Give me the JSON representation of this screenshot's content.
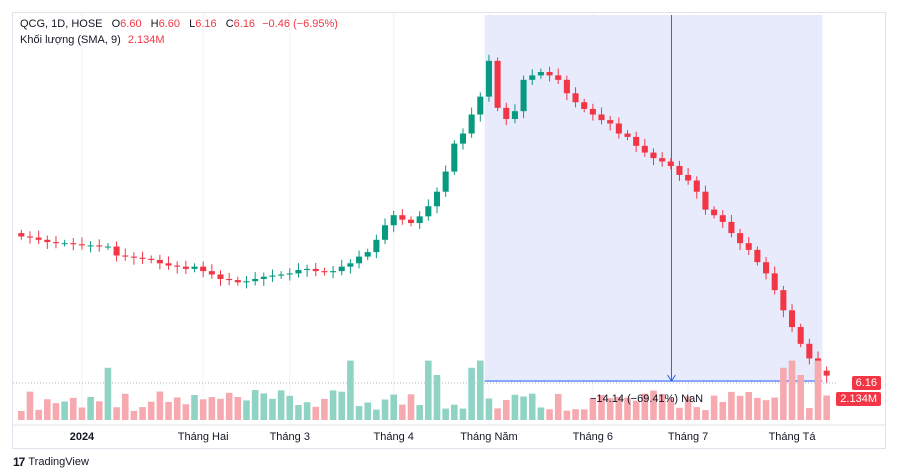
{
  "legend": {
    "symbol": "QCG, 1D, HOSE",
    "open_label": "O",
    "open": "6.60",
    "high_label": "H",
    "high": "6.60",
    "low_label": "L",
    "low": "6.16",
    "close_label": "C",
    "close": "6.16",
    "change": "−0.46 (−6.95%)",
    "volume_label": "Khối lượng (SMA, 9)",
    "volume_value": "2.134M"
  },
  "price_tag": "6.16",
  "volume_tag": "2.134M",
  "measure_label": "−14.14 (−69.41%) NaN",
  "branding": "TradingView",
  "colors": {
    "up": "#089981",
    "down": "#f23645",
    "up_vol": "#8fd3c4",
    "down_vol": "#f7a9b0",
    "range_fill": "#e3e8fb",
    "range_line": "#2962ff"
  },
  "chart_data": {
    "type": "candlestick",
    "x_ticks": [
      "2024",
      "Tháng Hai",
      "Tháng 3",
      "Tháng 4",
      "Tháng Năm",
      "Tháng 6",
      "Tháng 7",
      "Tháng Tá"
    ],
    "x_tick_index": [
      7,
      21,
      31,
      43,
      54,
      66,
      77,
      89
    ],
    "price_range": [
      5.5,
      23.5
    ],
    "last_price": 6.16,
    "closes": [
      18.6,
      18.5,
      18.3,
      18.1,
      18.0,
      18.0,
      17.9,
      17.8,
      17.8,
      17.7,
      17.7,
      16.9,
      16.8,
      16.7,
      16.6,
      16.5,
      16.2,
      16.0,
      15.9,
      15.7,
      15.9,
      15.5,
      15.2,
      14.8,
      14.7,
      14.5,
      14.6,
      14.8,
      15.0,
      15.1,
      15.2,
      15.3,
      15.6,
      15.7,
      15.5,
      15.4,
      15.5,
      15.9,
      16.2,
      16.8,
      17.2,
      18.3,
      19.6,
      20.5,
      20.1,
      19.8,
      20.4,
      21.3,
      22.6,
      24.4,
      26.9,
      27.8,
      29.5,
      31.1,
      34.3,
      30.1,
      29.1,
      29.8,
      32.6,
      33.0,
      33.3,
      33.0,
      32.6,
      31.4,
      30.6,
      30.0,
      29.5,
      29.0,
      28.7,
      27.8,
      27.5,
      26.7,
      26.1,
      25.6,
      25.3,
      24.9,
      24.1,
      23.6,
      22.6,
      21.0,
      20.5,
      19.9,
      18.9,
      18.0,
      17.4,
      16.3,
      15.3,
      13.8,
      12.0,
      10.5,
      9.0,
      7.7,
      6.6,
      6.16
    ],
    "volume_note": "relative volume bars, last volume 2.134M"
  }
}
